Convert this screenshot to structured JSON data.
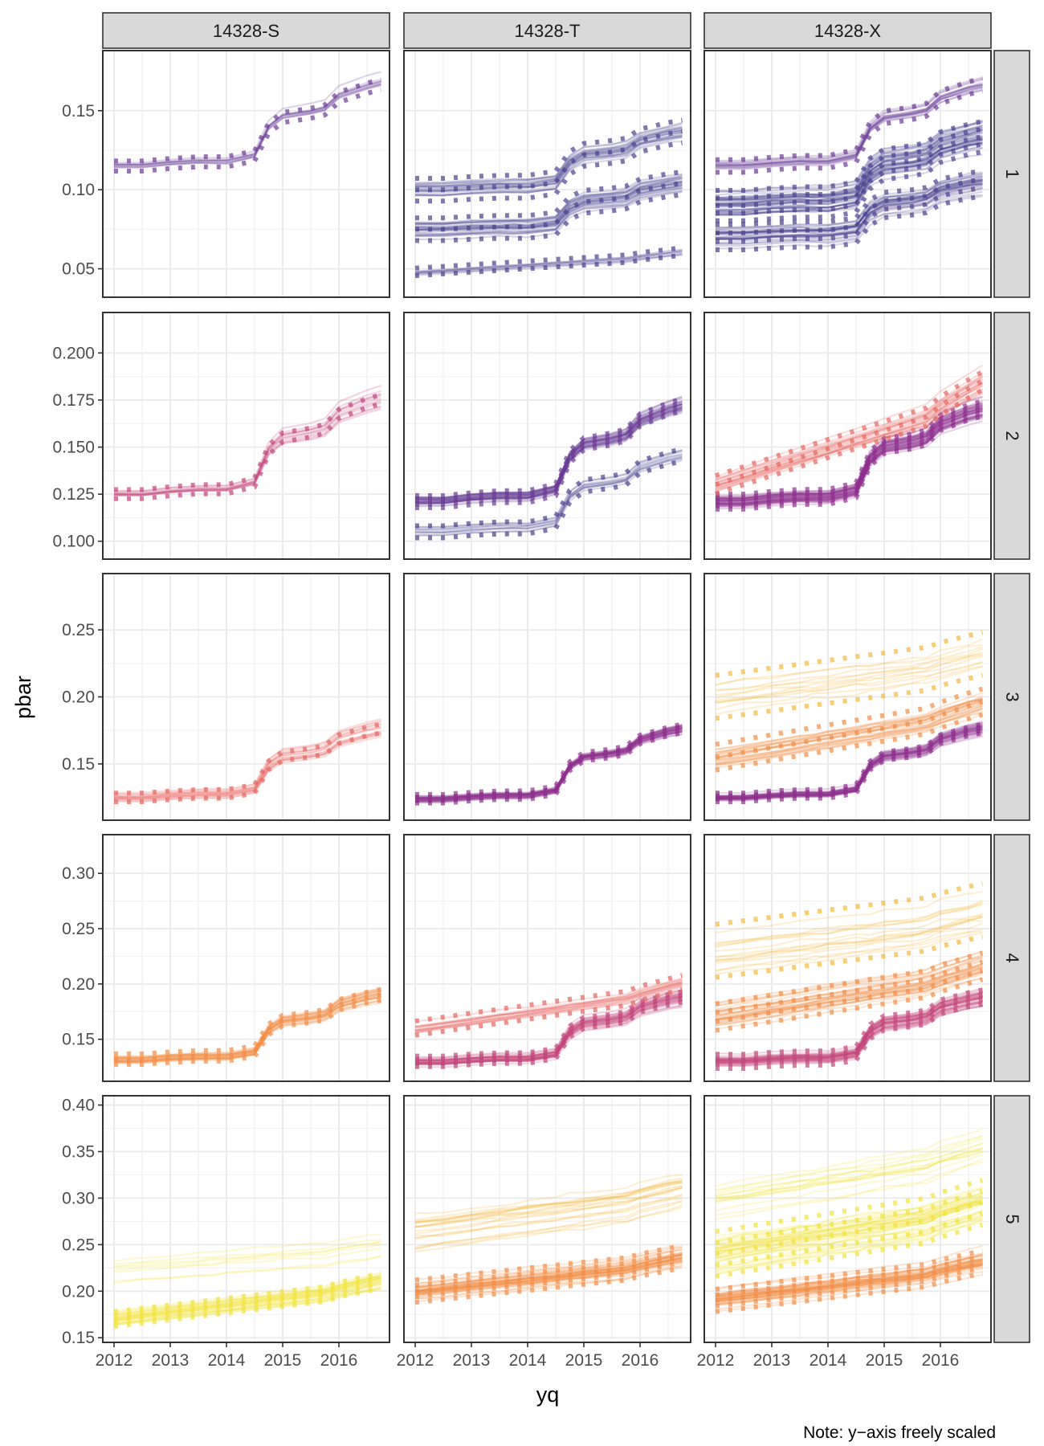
{
  "chart_data": {
    "type": "line",
    "xlabel": "yq",
    "ylabel": "pbar",
    "caption": "Note: y−axis freely scaled",
    "columns": [
      "14328-S",
      "14328-T",
      "14328-X"
    ],
    "rows": [
      "1",
      "2",
      "3",
      "4",
      "5"
    ],
    "x_ticks": [
      "2012",
      "2013",
      "2014",
      "2015",
      "2016"
    ],
    "x_range": [
      2011.8,
      2016.9
    ],
    "grid": true,
    "y_ticks": {
      "1": [
        "0.05",
        "0.10",
        "0.15"
      ],
      "2": [
        "0.100",
        "0.125",
        "0.150",
        "0.175",
        "0.200"
      ],
      "3": [
        "0.15",
        "0.20",
        "0.25"
      ],
      "4": [
        "0.15",
        "0.20",
        "0.25",
        "0.30"
      ],
      "5": [
        "0.15",
        "0.20",
        "0.25",
        "0.30",
        "0.35",
        "0.40"
      ]
    },
    "y_ranges": {
      "1": [
        0.032,
        0.188
      ],
      "2": [
        0.0905,
        0.2215
      ],
      "3": [
        0.108,
        0.292
      ],
      "4": [
        0.112,
        0.335
      ],
      "5": [
        0.145,
        0.41
      ]
    },
    "palette": [
      "#4b3f8e",
      "#6b3a94",
      "#8e2f8e",
      "#c2467a",
      "#e6655f",
      "#f28b46",
      "#f7b63c",
      "#f2e33a"
    ],
    "x_quarters": [
      2012.0,
      2012.5,
      2013.0,
      2013.5,
      2013.75,
      2014.0,
      2014.5,
      2014.75,
      2015.0,
      2015.5,
      2015.75,
      2016.0,
      2016.5,
      2016.75
    ],
    "trajectory_profiles": {
      "ramp": [
        0,
        0,
        0.03,
        0.05,
        0.05,
        0.05,
        0.12,
        0.45,
        0.58,
        0.63,
        0.67,
        0.82,
        0.93,
        0.97
      ],
      "smooth": [
        0,
        0.08,
        0.16,
        0.24,
        0.28,
        0.32,
        0.4,
        0.44,
        0.48,
        0.56,
        0.6,
        0.7,
        0.85,
        0.92
      ]
    },
    "panels": [
      {
        "row": "1",
        "col": "14328-S",
        "groups": [
          {
            "base": 0.115,
            "end": 0.168,
            "n": 10,
            "spread": 0.004,
            "color_index": 1,
            "profile": "ramp",
            "dotted": true
          }
        ]
      },
      {
        "row": "1",
        "col": "14328-T",
        "groups": [
          {
            "base": 0.075,
            "end": 0.105,
            "n": 25,
            "spread": 0.009,
            "color_index": 0,
            "profile": "ramp",
            "dotted": true
          },
          {
            "base": 0.1,
            "end": 0.138,
            "n": 20,
            "spread": 0.009,
            "color_index": 0,
            "profile": "ramp",
            "dotted": true
          },
          {
            "base": 0.048,
            "end": 0.062,
            "n": 8,
            "spread": 0.003,
            "color_index": 0,
            "profile": "smooth",
            "dotted": true
          }
        ]
      },
      {
        "row": "1",
        "col": "14328-X",
        "groups": [
          {
            "base": 0.07,
            "end": 0.105,
            "n": 30,
            "spread": 0.01,
            "color_index": 0,
            "profile": "ramp",
            "dotted": true
          },
          {
            "base": 0.09,
            "end": 0.135,
            "n": 40,
            "spread": 0.012,
            "color_index": 0,
            "profile": "ramp",
            "dotted": true
          },
          {
            "base": 0.115,
            "end": 0.168,
            "n": 15,
            "spread": 0.005,
            "color_index": 1,
            "profile": "ramp",
            "dotted": true
          }
        ]
      },
      {
        "row": "2",
        "col": "14328-S",
        "groups": [
          {
            "base": 0.125,
            "end": 0.177,
            "n": 12,
            "spread": 0.003,
            "color_index": 3,
            "profile": "ramp",
            "dotted": true
          }
        ]
      },
      {
        "row": "2",
        "col": "14328-T",
        "groups": [
          {
            "base": 0.121,
            "end": 0.174,
            "n": 30,
            "spread": 0.004,
            "color_index": 1,
            "profile": "ramp",
            "dotted": true
          },
          {
            "base": 0.105,
            "end": 0.147,
            "n": 10,
            "spread": 0.004,
            "color_index": 0,
            "profile": "ramp",
            "dotted": true
          }
        ]
      },
      {
        "row": "2",
        "col": "14328-X",
        "groups": [
          {
            "base": 0.121,
            "end": 0.172,
            "n": 40,
            "spread": 0.005,
            "color_index": 2,
            "profile": "ramp",
            "dotted": true
          },
          {
            "base": 0.13,
            "end": 0.19,
            "n": 20,
            "spread": 0.006,
            "color_index": 4,
            "profile": "smooth",
            "dotted": true
          }
        ]
      },
      {
        "row": "3",
        "col": "14328-S",
        "groups": [
          {
            "base": 0.125,
            "end": 0.178,
            "n": 15,
            "spread": 0.004,
            "color_index": 4,
            "profile": "ramp",
            "dotted": true
          }
        ]
      },
      {
        "row": "3",
        "col": "14328-T",
        "groups": [
          {
            "base": 0.124,
            "end": 0.178,
            "n": 30,
            "spread": 0.004,
            "color_index": 2,
            "profile": "ramp",
            "dotted": true
          }
        ]
      },
      {
        "row": "3",
        "col": "14328-X",
        "groups": [
          {
            "base": 0.125,
            "end": 0.178,
            "n": 30,
            "spread": 0.004,
            "color_index": 2,
            "profile": "ramp",
            "dotted": true
          },
          {
            "base": 0.155,
            "end": 0.2,
            "n": 25,
            "spread": 0.012,
            "color_index": 5,
            "profile": "smooth",
            "dotted": true
          },
          {
            "base": 0.2,
            "end": 0.235,
            "n": 12,
            "spread": 0.02,
            "color_index": 6,
            "profile": "smooth",
            "dotted": true
          }
        ]
      },
      {
        "row": "4",
        "col": "14328-S",
        "groups": [
          {
            "base": 0.132,
            "end": 0.192,
            "n": 25,
            "spread": 0.006,
            "color_index": 5,
            "profile": "ramp",
            "dotted": true
          }
        ]
      },
      {
        "row": "4",
        "col": "14328-T",
        "groups": [
          {
            "base": 0.13,
            "end": 0.19,
            "n": 30,
            "spread": 0.006,
            "color_index": 3,
            "profile": "ramp",
            "dotted": true
          },
          {
            "base": 0.16,
            "end": 0.205,
            "n": 15,
            "spread": 0.008,
            "color_index": 4,
            "profile": "smooth",
            "dotted": true
          }
        ]
      },
      {
        "row": "4",
        "col": "14328-X",
        "groups": [
          {
            "base": 0.13,
            "end": 0.19,
            "n": 35,
            "spread": 0.008,
            "color_index": 3,
            "profile": "ramp",
            "dotted": true
          },
          {
            "base": 0.17,
            "end": 0.22,
            "n": 30,
            "spread": 0.015,
            "color_index": 5,
            "profile": "smooth",
            "dotted": true
          },
          {
            "base": 0.23,
            "end": 0.27,
            "n": 15,
            "spread": 0.03,
            "color_index": 6,
            "profile": "smooth",
            "dotted": true
          }
        ]
      },
      {
        "row": "5",
        "col": "14328-S",
        "groups": [
          {
            "base": 0.17,
            "end": 0.215,
            "n": 30,
            "spread": 0.01,
            "color_index": 7,
            "profile": "smooth",
            "dotted": true
          },
          {
            "base": 0.22,
            "end": 0.25,
            "n": 8,
            "spread": 0.02,
            "color_index": 7,
            "profile": "smooth",
            "dotted": false
          }
        ]
      },
      {
        "row": "5",
        "col": "14328-T",
        "groups": [
          {
            "base": 0.2,
            "end": 0.24,
            "n": 40,
            "spread": 0.015,
            "color_index": 5,
            "profile": "smooth",
            "dotted": true
          },
          {
            "base": 0.26,
            "end": 0.31,
            "n": 20,
            "spread": 0.025,
            "color_index": 6,
            "profile": "smooth",
            "dotted": false
          }
        ]
      },
      {
        "row": "5",
        "col": "14328-X",
        "groups": [
          {
            "base": 0.19,
            "end": 0.235,
            "n": 40,
            "spread": 0.015,
            "color_index": 5,
            "profile": "smooth",
            "dotted": true
          },
          {
            "base": 0.24,
            "end": 0.3,
            "n": 40,
            "spread": 0.03,
            "color_index": 7,
            "profile": "smooth",
            "dotted": true
          },
          {
            "base": 0.3,
            "end": 0.36,
            "n": 15,
            "spread": 0.03,
            "color_index": 7,
            "profile": "smooth",
            "dotted": false
          }
        ]
      }
    ]
  }
}
